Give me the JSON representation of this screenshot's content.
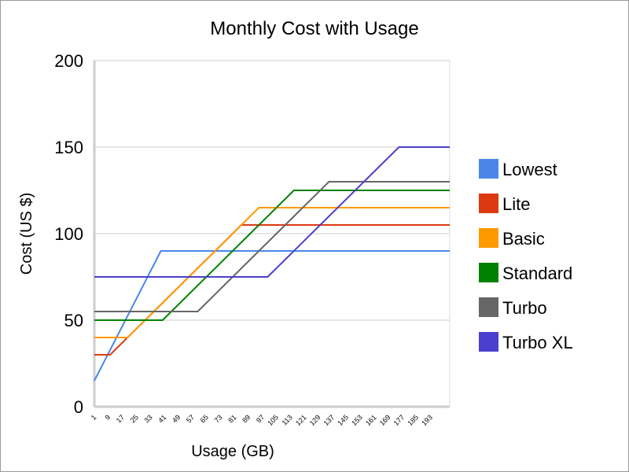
{
  "chart_data": {
    "type": "line",
    "title": "Monthly Cost with Usage",
    "xlabel": "Usage (GB)",
    "ylabel": "Cost (US $)",
    "xlim": [
      1,
      204
    ],
    "ylim": [
      0,
      200
    ],
    "yticks": [
      0,
      50,
      100,
      150,
      200
    ],
    "xticks": [
      1,
      9,
      17,
      25,
      33,
      41,
      49,
      57,
      65,
      73,
      81,
      89,
      97,
      105,
      113,
      121,
      129,
      137,
      145,
      153,
      161,
      169,
      177,
      185,
      193
    ],
    "grid": true,
    "legend_position": "right",
    "series": [
      {
        "name": "Lowest",
        "color": "#4a86e8",
        "points": [
          [
            1,
            15
          ],
          [
            39,
            90
          ],
          [
            204,
            90
          ]
        ]
      },
      {
        "name": "Lite",
        "color": "#dc3912",
        "points": [
          [
            1,
            30
          ],
          [
            10,
            30
          ],
          [
            85,
            105
          ],
          [
            204,
            105
          ]
        ]
      },
      {
        "name": "Basic",
        "color": "#ff9900",
        "points": [
          [
            1,
            40
          ],
          [
            20,
            40
          ],
          [
            95,
            115
          ],
          [
            204,
            115
          ]
        ]
      },
      {
        "name": "Standard",
        "color": "#008000",
        "points": [
          [
            1,
            50
          ],
          [
            40,
            50
          ],
          [
            115,
            125
          ],
          [
            204,
            125
          ]
        ]
      },
      {
        "name": "Turbo",
        "color": "#666666",
        "points": [
          [
            1,
            55
          ],
          [
            60,
            55
          ],
          [
            135,
            130
          ],
          [
            204,
            130
          ]
        ]
      },
      {
        "name": "Turbo XL",
        "color": "#4b3fcf",
        "points": [
          [
            1,
            75
          ],
          [
            100,
            75
          ],
          [
            175,
            150
          ],
          [
            204,
            150
          ]
        ]
      }
    ]
  }
}
